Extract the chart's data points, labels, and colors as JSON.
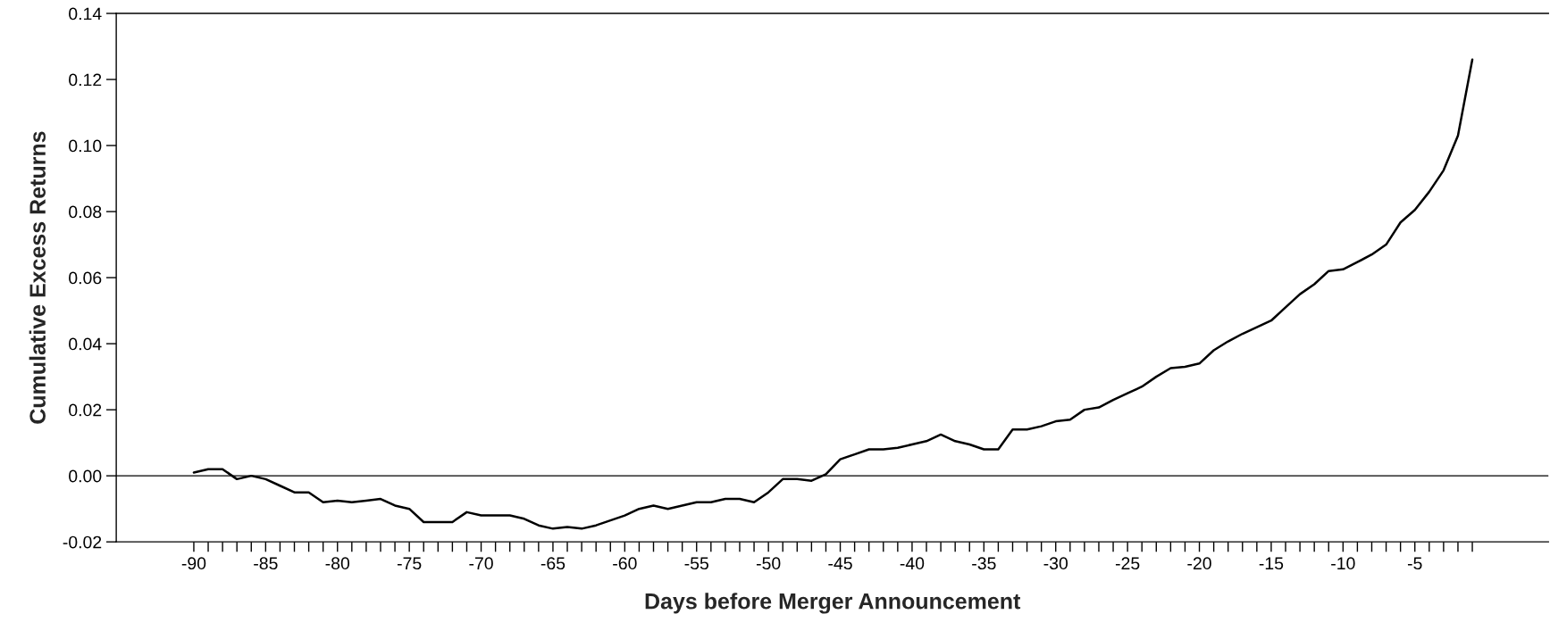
{
  "chart_data": {
    "type": "line",
    "xlabel": "Days before Merger Announcement",
    "ylabel": "Cumulative Excess Returns",
    "x": [
      -90,
      -89,
      -88,
      -87,
      -86,
      -85,
      -84,
      -83,
      -82,
      -81,
      -80,
      -79,
      -78,
      -77,
      -76,
      -75,
      -74,
      -73,
      -72,
      -71,
      -70,
      -69,
      -68,
      -67,
      -66,
      -65,
      -64,
      -63,
      -62,
      -61,
      -60,
      -59,
      -58,
      -57,
      -56,
      -55,
      -54,
      -53,
      -52,
      -51,
      -50,
      -49,
      -48,
      -47,
      -46,
      -45,
      -44,
      -43,
      -42,
      -41,
      -40,
      -39,
      -38,
      -37,
      -36,
      -35,
      -34,
      -33,
      -32,
      -31,
      -30,
      -29,
      -28,
      -27,
      -26,
      -25,
      -24,
      -23,
      -22,
      -21,
      -20,
      -19,
      -18,
      -17,
      -16,
      -15,
      -14,
      -13,
      -12,
      -11,
      -10,
      -9,
      -8,
      -7,
      -6,
      -5,
      -4,
      -3,
      -2,
      -1
    ],
    "series": [
      {
        "color": "#000000",
        "values": [
          0.001,
          0.002,
          0.002,
          -0.001,
          0.0,
          -0.001,
          -0.003,
          -0.005,
          -0.005,
          -0.008,
          -0.0075,
          -0.008,
          -0.0075,
          -0.007,
          -0.009,
          -0.01,
          -0.014,
          -0.014,
          -0.014,
          -0.011,
          -0.012,
          -0.012,
          -0.012,
          -0.013,
          -0.015,
          -0.016,
          -0.0155,
          -0.016,
          -0.015,
          -0.0135,
          -0.012,
          -0.01,
          -0.009,
          -0.01,
          -0.009,
          -0.008,
          -0.008,
          -0.007,
          -0.007,
          -0.008,
          -0.005,
          -0.001,
          -0.001,
          -0.0015,
          0.0005,
          0.005,
          0.0065,
          0.008,
          0.008,
          0.0085,
          0.0095,
          0.0105,
          0.0125,
          0.0105,
          0.0095,
          0.008,
          0.008,
          0.014,
          0.014,
          0.015,
          0.0165,
          0.017,
          0.02,
          0.0207,
          0.023,
          0.025,
          0.027,
          0.03,
          0.0326,
          0.033,
          0.034,
          0.038,
          0.0407,
          0.043,
          0.045,
          0.047,
          0.051,
          0.055,
          0.058,
          0.062,
          0.0625,
          0.0647,
          0.067,
          0.07,
          0.0767,
          0.0805,
          0.086,
          0.0925,
          0.103,
          0.126
        ]
      }
    ],
    "xlim": [
      -95.4,
      4.3
    ],
    "xticks": [
      -90,
      {
        "value": -89,
        "label": null
      },
      {
        "value": -88,
        "label": null
      },
      {
        "value": -87,
        "label": null
      },
      {
        "value": -86,
        "label": null
      },
      -85,
      {
        "value": -84,
        "label": null
      },
      {
        "value": -83,
        "label": null
      },
      {
        "value": -82,
        "label": null
      },
      {
        "value": -81,
        "label": null
      },
      -80,
      {
        "value": -79,
        "label": null
      },
      {
        "value": -78,
        "label": null
      },
      {
        "value": -77,
        "label": null
      },
      {
        "value": -76,
        "label": null
      },
      -75,
      {
        "value": -74,
        "label": null
      },
      {
        "value": -73,
        "label": null
      },
      {
        "value": -72,
        "label": null
      },
      {
        "value": -71,
        "label": null
      },
      -70,
      {
        "value": -69,
        "label": null
      },
      {
        "value": -68,
        "label": null
      },
      {
        "value": -67,
        "label": null
      },
      {
        "value": -66,
        "label": null
      },
      -65,
      {
        "value": -64,
        "label": null
      },
      {
        "value": -63,
        "label": null
      },
      {
        "value": -62,
        "label": null
      },
      {
        "value": -61,
        "label": null
      },
      -60,
      {
        "value": -59,
        "label": null
      },
      {
        "value": -58,
        "label": null
      },
      {
        "value": -57,
        "label": null
      },
      {
        "value": -56,
        "label": null
      },
      -55,
      {
        "value": -54,
        "label": null
      },
      {
        "value": -53,
        "label": null
      },
      {
        "value": -52,
        "label": null
      },
      {
        "value": -51,
        "label": null
      },
      -50,
      {
        "value": -49,
        "label": null
      },
      {
        "value": -48,
        "label": null
      },
      {
        "value": -47,
        "label": null
      },
      {
        "value": -46,
        "label": null
      },
      -45,
      {
        "value": -44,
        "label": null
      },
      {
        "value": -43,
        "label": null
      },
      {
        "value": -42,
        "label": null
      },
      {
        "value": -41,
        "label": null
      },
      -40,
      {
        "value": -39,
        "label": null
      },
      {
        "value": -38,
        "label": null
      },
      {
        "value": -37,
        "label": null
      },
      {
        "value": -36,
        "label": null
      },
      -35,
      {
        "value": -34,
        "label": null
      },
      {
        "value": -33,
        "label": null
      },
      {
        "value": -32,
        "label": null
      },
      {
        "value": -31,
        "label": null
      },
      -30,
      {
        "value": -29,
        "label": null
      },
      {
        "value": -28,
        "label": null
      },
      {
        "value": -27,
        "label": null
      },
      {
        "value": -26,
        "label": null
      },
      -25,
      {
        "value": -24,
        "label": null
      },
      {
        "value": -23,
        "label": null
      },
      {
        "value": -22,
        "label": null
      },
      {
        "value": -21,
        "label": null
      },
      -20,
      {
        "value": -19,
        "label": null
      },
      {
        "value": -18,
        "label": null
      },
      {
        "value": -17,
        "label": null
      },
      {
        "value": -16,
        "label": null
      },
      -15,
      {
        "value": -14,
        "label": null
      },
      {
        "value": -13,
        "label": null
      },
      {
        "value": -12,
        "label": null
      },
      {
        "value": -11,
        "label": null
      },
      -10,
      {
        "value": -9,
        "label": null
      },
      {
        "value": -8,
        "label": null
      },
      {
        "value": -7,
        "label": null
      },
      {
        "value": -6,
        "label": null
      },
      -5,
      {
        "value": -4,
        "label": null
      },
      {
        "value": -3,
        "label": null
      },
      {
        "value": -2,
        "label": null
      },
      {
        "value": -1,
        "label": null
      }
    ],
    "ylim": [
      -0.02,
      0.14
    ],
    "yticks": [
      {
        "value": -0.02,
        "label": "-0.02"
      },
      {
        "value": 0,
        "label": "0.00"
      },
      {
        "value": 0.02,
        "label": "0.02"
      },
      {
        "value": 0.04,
        "label": "0.04"
      },
      {
        "value": 0.06,
        "label": "0.06"
      },
      {
        "value": 0.08,
        "label": "0.08"
      },
      {
        "value": 0.1,
        "label": "0.10"
      },
      {
        "value": 0.12,
        "label": "0.12"
      },
      {
        "value": 0.14,
        "label": "0.14"
      }
    ],
    "ref_lines": [
      {
        "axis": "y",
        "value": 0,
        "color": "#000000",
        "line_style": "solid"
      }
    ],
    "grid": false,
    "marker": "none",
    "line_style": "solid"
  }
}
